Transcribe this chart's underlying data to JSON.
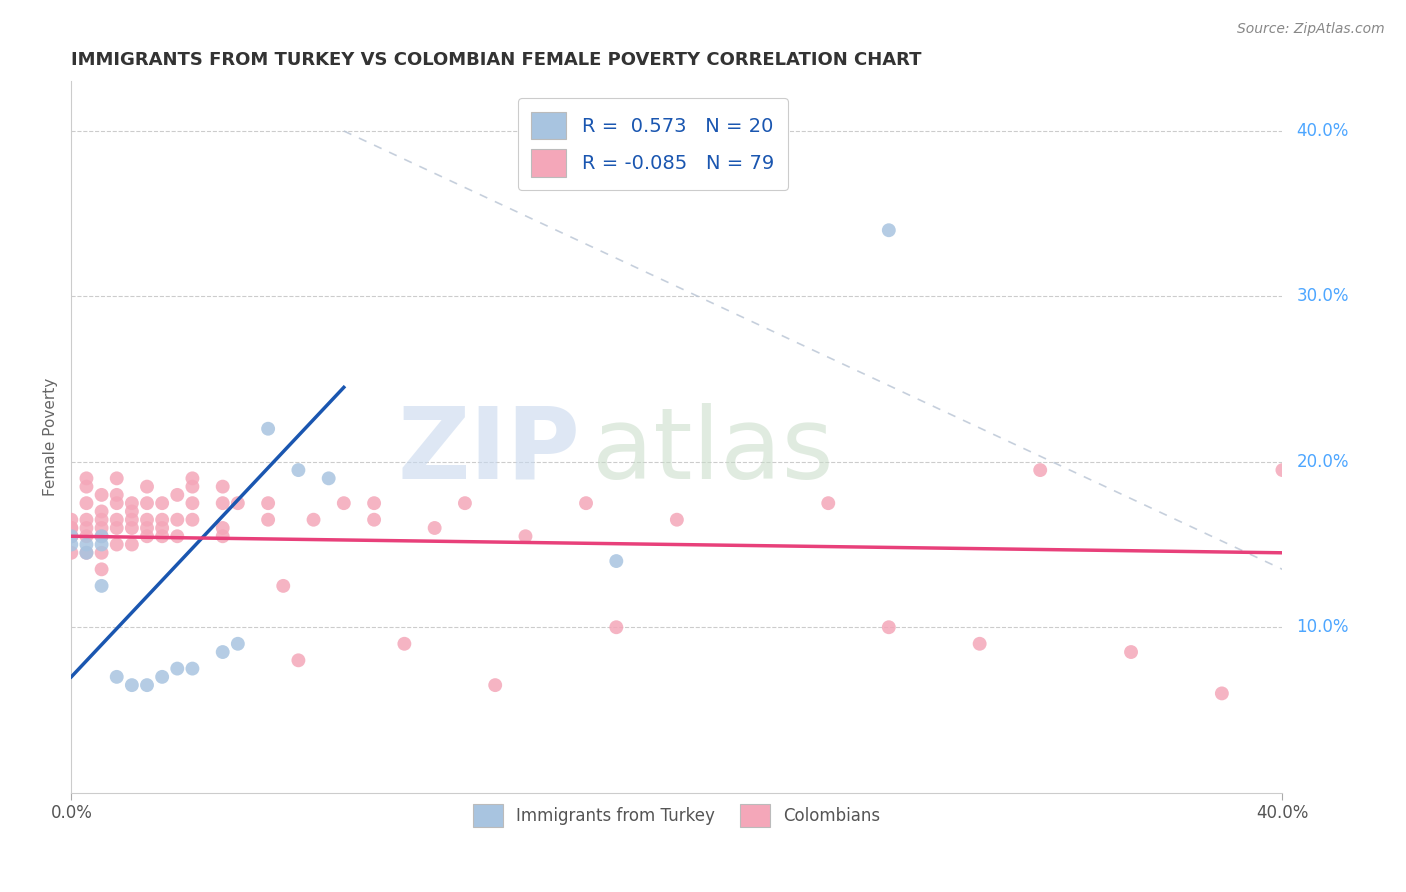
{
  "title": "IMMIGRANTS FROM TURKEY VS COLOMBIAN FEMALE POVERTY CORRELATION CHART",
  "source": "Source: ZipAtlas.com",
  "ylabel": "Female Poverty",
  "yticks": [
    "10.0%",
    "20.0%",
    "30.0%",
    "40.0%"
  ],
  "ytick_vals": [
    0.1,
    0.2,
    0.3,
    0.4
  ],
  "xlim": [
    0.0,
    0.4
  ],
  "ylim": [
    0.0,
    0.43
  ],
  "turkey_color": "#a8c4e0",
  "colombian_color": "#f4a7b9",
  "turkey_line_color": "#1a56b0",
  "colombian_line_color": "#e8407a",
  "trend_line_color": "#b8c4d4",
  "turkey_points": [
    [
      0.0,
      0.155
    ],
    [
      0.0,
      0.15
    ],
    [
      0.005,
      0.15
    ],
    [
      0.005,
      0.145
    ],
    [
      0.01,
      0.15
    ],
    [
      0.01,
      0.155
    ],
    [
      0.01,
      0.125
    ],
    [
      0.015,
      0.07
    ],
    [
      0.02,
      0.065
    ],
    [
      0.025,
      0.065
    ],
    [
      0.03,
      0.07
    ],
    [
      0.035,
      0.075
    ],
    [
      0.04,
      0.075
    ],
    [
      0.05,
      0.085
    ],
    [
      0.055,
      0.09
    ],
    [
      0.065,
      0.22
    ],
    [
      0.075,
      0.195
    ],
    [
      0.085,
      0.19
    ],
    [
      0.18,
      0.14
    ],
    [
      0.27,
      0.34
    ]
  ],
  "colombian_points": [
    [
      0.0,
      0.155
    ],
    [
      0.0,
      0.16
    ],
    [
      0.0,
      0.165
    ],
    [
      0.0,
      0.155
    ],
    [
      0.0,
      0.145
    ],
    [
      0.0,
      0.155
    ],
    [
      0.0,
      0.16
    ],
    [
      0.005,
      0.145
    ],
    [
      0.005,
      0.155
    ],
    [
      0.005,
      0.16
    ],
    [
      0.005,
      0.165
    ],
    [
      0.005,
      0.175
    ],
    [
      0.005,
      0.185
    ],
    [
      0.005,
      0.19
    ],
    [
      0.01,
      0.135
    ],
    [
      0.01,
      0.145
    ],
    [
      0.01,
      0.155
    ],
    [
      0.01,
      0.16
    ],
    [
      0.01,
      0.165
    ],
    [
      0.01,
      0.17
    ],
    [
      0.01,
      0.18
    ],
    [
      0.015,
      0.15
    ],
    [
      0.015,
      0.16
    ],
    [
      0.015,
      0.165
    ],
    [
      0.015,
      0.175
    ],
    [
      0.015,
      0.18
    ],
    [
      0.015,
      0.19
    ],
    [
      0.02,
      0.15
    ],
    [
      0.02,
      0.16
    ],
    [
      0.02,
      0.165
    ],
    [
      0.02,
      0.17
    ],
    [
      0.02,
      0.175
    ],
    [
      0.025,
      0.155
    ],
    [
      0.025,
      0.16
    ],
    [
      0.025,
      0.165
    ],
    [
      0.025,
      0.175
    ],
    [
      0.025,
      0.185
    ],
    [
      0.03,
      0.155
    ],
    [
      0.03,
      0.16
    ],
    [
      0.03,
      0.165
    ],
    [
      0.03,
      0.175
    ],
    [
      0.035,
      0.155
    ],
    [
      0.035,
      0.165
    ],
    [
      0.035,
      0.18
    ],
    [
      0.04,
      0.165
    ],
    [
      0.04,
      0.175
    ],
    [
      0.04,
      0.185
    ],
    [
      0.04,
      0.19
    ],
    [
      0.05,
      0.155
    ],
    [
      0.05,
      0.16
    ],
    [
      0.05,
      0.175
    ],
    [
      0.05,
      0.185
    ],
    [
      0.055,
      0.175
    ],
    [
      0.065,
      0.165
    ],
    [
      0.065,
      0.175
    ],
    [
      0.07,
      0.125
    ],
    [
      0.075,
      0.08
    ],
    [
      0.08,
      0.165
    ],
    [
      0.09,
      0.175
    ],
    [
      0.1,
      0.165
    ],
    [
      0.1,
      0.175
    ],
    [
      0.11,
      0.09
    ],
    [
      0.12,
      0.16
    ],
    [
      0.13,
      0.175
    ],
    [
      0.14,
      0.065
    ],
    [
      0.15,
      0.155
    ],
    [
      0.17,
      0.175
    ],
    [
      0.18,
      0.1
    ],
    [
      0.2,
      0.165
    ],
    [
      0.25,
      0.175
    ],
    [
      0.27,
      0.1
    ],
    [
      0.3,
      0.09
    ],
    [
      0.32,
      0.195
    ],
    [
      0.35,
      0.085
    ],
    [
      0.38,
      0.06
    ],
    [
      0.4,
      0.195
    ]
  ],
  "turkey_line_x": [
    0.0,
    0.09
  ],
  "turkey_line_y": [
    0.07,
    0.245
  ],
  "colombian_line_x": [
    0.0,
    0.4
  ],
  "colombian_line_y": [
    0.155,
    0.145
  ],
  "diag_line_x": [
    0.09,
    0.4
  ],
  "diag_line_y": [
    0.4,
    0.135
  ]
}
